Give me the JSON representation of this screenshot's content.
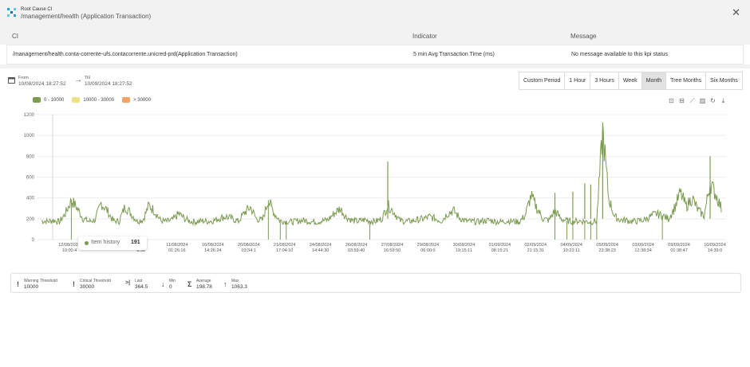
{
  "header": {
    "subtitle": "Root Cause CI",
    "title": "/management/health (Application Transaction)"
  },
  "table": {
    "columns": [
      "CI",
      "Indicator",
      "Message"
    ],
    "row": {
      "ci": "/management/health.conta-corrente-ufs.contacorrente.unicred-prd(Application Transaction)",
      "indicator": "5 min Avg Transaction Time (ms)",
      "message": "No message available to this kpi status"
    }
  },
  "range": {
    "from_label": "From",
    "from_value": "10/08/2024 18:27:52",
    "till_label": "Till",
    "till_value": "10/09/2024 18:27:52"
  },
  "periods": [
    {
      "label": "Custom Period",
      "active": false
    },
    {
      "label": "1 Hour",
      "active": false
    },
    {
      "label": "3 Hours",
      "active": false
    },
    {
      "label": "Week",
      "active": false
    },
    {
      "label": "Month",
      "active": true
    },
    {
      "label": "Tree Months",
      "active": false
    },
    {
      "label": "Six Months",
      "active": false
    }
  ],
  "legend": [
    {
      "label": "0 - 10000",
      "color": "#7b9b50"
    },
    {
      "label": "10000 - 30000",
      "color": "#ece184"
    },
    {
      "label": "> 30000",
      "color": "#f2a36a"
    }
  ],
  "toolbar_icons": [
    "zoom-in-icon",
    "zoom-out-icon",
    "line-chart-icon",
    "bar-chart-icon",
    "refresh-icon",
    "download-icon"
  ],
  "tooltip": {
    "label": "Item history",
    "value": "191"
  },
  "stats": [
    {
      "icon": "warning-icon",
      "glyph": "!",
      "label": "Warning Threshold",
      "value": "10000"
    },
    {
      "icon": "critical-icon",
      "glyph": "!",
      "label": "Critical Threshold",
      "value": "30000"
    },
    {
      "icon": "last-icon",
      "glyph": ">|",
      "label": "Last",
      "value": "364.5"
    },
    {
      "icon": "min-icon",
      "glyph": "↓",
      "label": "Min",
      "value": "0"
    },
    {
      "icon": "average-icon",
      "glyph": "Σ",
      "label": "Average",
      "value": "198.78"
    },
    {
      "icon": "max-icon",
      "glyph": "↑",
      "label": "Max",
      "value": "1063.3"
    }
  ],
  "chart_data": {
    "type": "line",
    "ylim": [
      0,
      1200
    ],
    "yticks": [
      0,
      200,
      400,
      600,
      800,
      1000,
      1200
    ],
    "grid": true,
    "color": "#7b9b50",
    "xticks": [
      {
        "date": "12/08/2024",
        "time": "10:00:4"
      },
      {
        "date": "",
        "time": ""
      },
      {
        "date": "/2024",
        "time": "8:32"
      },
      {
        "date": "11/08/2024",
        "time": "01:26:16"
      },
      {
        "date": "16/08/2024",
        "time": "14:26:24"
      },
      {
        "date": "20/08/2024",
        "time": "03:34:1"
      },
      {
        "date": "21/08/2024",
        "time": "17:04:10"
      },
      {
        "date": "24/08/2024",
        "time": "14:44:30"
      },
      {
        "date": "26/08/2024",
        "time": "03:59:40"
      },
      {
        "date": "27/08/2024",
        "time": "16:59:50"
      },
      {
        "date": "29/08/2024",
        "time": "06:00:0"
      },
      {
        "date": "30/08/2024",
        "time": "19:15:11"
      },
      {
        "date": "01/09/2024",
        "time": "08:15:21"
      },
      {
        "date": "02/09/2024",
        "time": "21:15:31"
      },
      {
        "date": "04/09/2024",
        "time": "10:23:11"
      },
      {
        "date": "05/09/2024",
        "time": "23:38:23"
      },
      {
        "date": "03/09/2024",
        "time": "12:38:34"
      },
      {
        "date": "09/09/2024",
        "time": "01:38:47"
      },
      {
        "date": "10/09/2024",
        "time": "14:39:0"
      }
    ],
    "series": [
      {
        "points": [
          [
            0,
            180
          ],
          [
            1,
            175
          ],
          [
            2,
            185
          ],
          [
            3,
            170
          ],
          [
            4,
            250
          ],
          [
            5,
            380
          ],
          [
            6,
            300
          ],
          [
            7,
            200
          ],
          [
            8,
            175
          ],
          [
            9,
            190
          ],
          [
            10,
            350
          ],
          [
            11,
            280
          ],
          [
            12,
            180
          ],
          [
            13,
            175
          ],
          [
            14,
            320
          ],
          [
            15,
            250
          ],
          [
            16,
            180
          ],
          [
            17,
            190
          ],
          [
            18,
            330
          ],
          [
            19,
            270
          ],
          [
            20,
            180
          ],
          [
            21,
            175
          ],
          [
            22,
            190
          ],
          [
            23,
            250
          ],
          [
            24,
            200
          ],
          [
            25,
            175
          ],
          [
            26,
            170
          ],
          [
            27,
            180
          ],
          [
            28,
            175
          ],
          [
            29,
            185
          ],
          [
            30,
            210
          ],
          [
            31,
            220
          ],
          [
            32,
            200
          ],
          [
            33,
            175
          ],
          [
            34,
            260
          ],
          [
            35,
            310
          ],
          [
            36,
            200
          ],
          [
            37,
            185
          ],
          [
            38,
            380
          ],
          [
            39,
            250
          ],
          [
            40,
            180
          ],
          [
            41,
            175
          ],
          [
            42,
            170
          ],
          [
            43,
            180
          ],
          [
            44,
            185
          ],
          [
            45,
            175
          ],
          [
            46,
            170
          ],
          [
            47,
            180
          ],
          [
            48,
            190
          ],
          [
            49,
            250
          ],
          [
            50,
            300
          ],
          [
            51,
            220
          ],
          [
            52,
            185
          ],
          [
            53,
            175
          ],
          [
            54,
            190
          ],
          [
            55,
            180
          ],
          [
            56,
            175
          ],
          [
            57,
            200
          ],
          [
            58,
            330
          ],
          [
            59,
            270
          ],
          [
            60,
            185
          ],
          [
            61,
            175
          ],
          [
            62,
            180
          ],
          [
            63,
            190
          ],
          [
            64,
            200
          ],
          [
            65,
            220
          ],
          [
            66,
            200
          ],
          [
            67,
            180
          ],
          [
            68,
            250
          ],
          [
            69,
            280
          ],
          [
            70,
            210
          ],
          [
            71,
            180
          ],
          [
            72,
            175
          ],
          [
            73,
            170
          ],
          [
            74,
            180
          ],
          [
            75,
            185
          ],
          [
            76,
            175
          ],
          [
            77,
            170
          ],
          [
            78,
            180
          ],
          [
            79,
            175
          ],
          [
            80,
            170
          ],
          [
            81,
            230
          ],
          [
            82,
            420
          ],
          [
            83,
            300
          ],
          [
            84,
            200
          ],
          [
            85,
            185
          ],
          [
            86,
            280
          ],
          [
            87,
            200
          ],
          [
            88,
            180
          ],
          [
            89,
            175
          ],
          [
            90,
            180
          ],
          [
            91,
            175
          ],
          [
            92,
            170
          ],
          [
            93,
            180
          ],
          [
            94,
            1050
          ],
          [
            95,
            400
          ],
          [
            96,
            220
          ],
          [
            97,
            190
          ],
          [
            98,
            185
          ],
          [
            99,
            175
          ],
          [
            100,
            180
          ],
          [
            101,
            190
          ],
          [
            102,
            220
          ],
          [
            103,
            250
          ],
          [
            104,
            230
          ],
          [
            105,
            200
          ],
          [
            106,
            300
          ],
          [
            107,
            450
          ],
          [
            108,
            320
          ],
          [
            109,
            400
          ],
          [
            110,
            280
          ],
          [
            111,
            230
          ],
          [
            112,
            540
          ],
          [
            113,
            430
          ],
          [
            114,
            280
          ]
        ],
        "spikes_down": [
          5,
          38,
          40,
          41,
          55,
          86,
          88,
          89,
          91,
          92,
          93,
          104
        ],
        "spikes_up": [
          [
            58,
            750
          ],
          [
            86,
            450
          ],
          [
            89,
            460
          ],
          [
            91,
            540
          ],
          [
            92,
            530
          ],
          [
            94,
            1060
          ],
          [
            112,
            800
          ]
        ]
      }
    ]
  }
}
